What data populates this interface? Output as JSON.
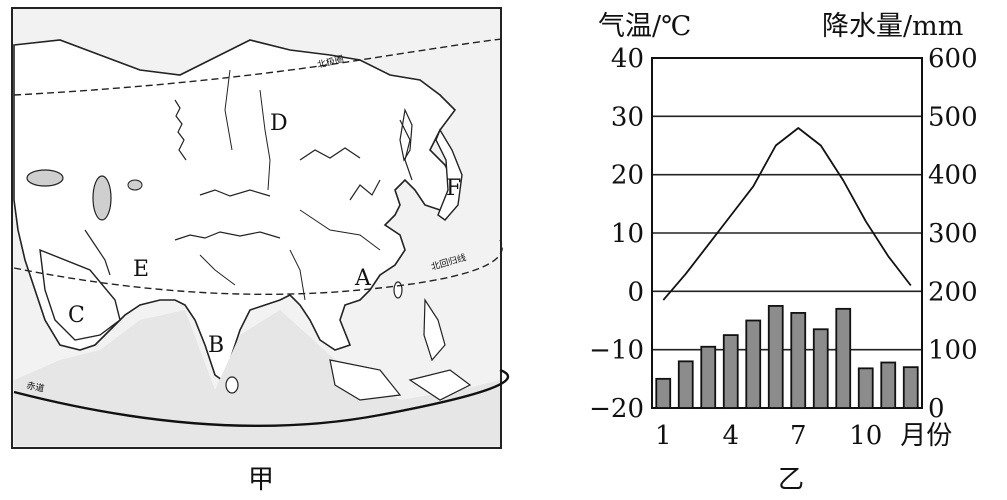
{
  "map": {
    "caption": "甲",
    "point_labels": [
      "A",
      "B",
      "C",
      "D",
      "E",
      "F"
    ],
    "line_labels": {
      "arctic_circle": "北极圈",
      "tropic_cancer": "北回归线",
      "equator": "赤道"
    }
  },
  "chart": {
    "caption": "乙",
    "left_axis_title": "气温/℃",
    "right_axis_title": "降水量/mm",
    "month_unit": "月份"
  },
  "chart_data": {
    "type": "bar",
    "x": [
      1,
      2,
      3,
      4,
      5,
      6,
      7,
      8,
      9,
      10,
      11,
      12
    ],
    "x_tick_labels": [
      "1",
      "4",
      "7",
      "10"
    ],
    "temperature_ticks": [
      "40",
      "30",
      "20",
      "10",
      "0",
      "−10",
      "−20"
    ],
    "precipitation_ticks": [
      "600",
      "500",
      "400",
      "300",
      "200",
      "100",
      "0"
    ],
    "ylim_temperature": [
      -20,
      40
    ],
    "ylim_precipitation": [
      0,
      600
    ],
    "grid": true,
    "series": [
      {
        "type": "line",
        "axis": "left",
        "values": [
          -1.5,
          3,
          8,
          13,
          18,
          25,
          28,
          25,
          19,
          12,
          6,
          1
        ]
      },
      {
        "type": "bar",
        "axis": "right",
        "values": [
          50,
          80,
          105,
          125,
          150,
          175,
          163,
          135,
          170,
          68,
          78,
          70
        ]
      }
    ]
  }
}
